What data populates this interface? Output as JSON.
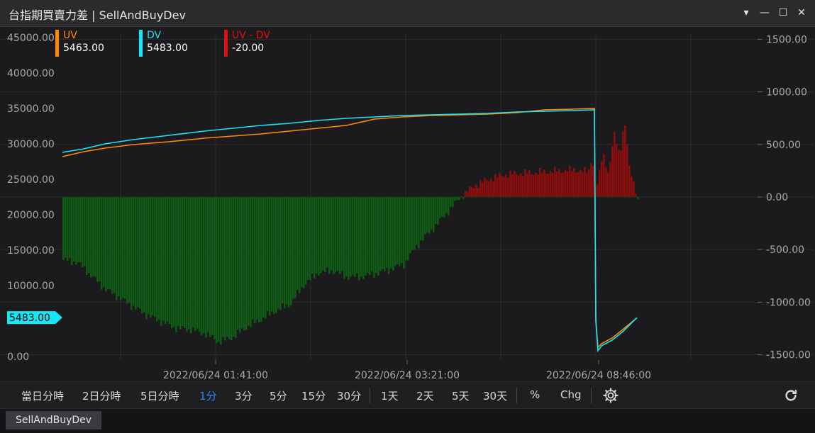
{
  "window": {
    "title": "台指期買賣力差 | SellAndBuyDev",
    "buttons": [
      "▾",
      "—",
      "☐",
      "✕"
    ]
  },
  "legend": [
    {
      "name": "UV",
      "value": "5463.00",
      "color": "#ff8a00"
    },
    {
      "name": "DV",
      "value": "5483.00",
      "color": "#19e6f5"
    },
    {
      "name": "UV - DV",
      "value": "-20.00",
      "color": "#e01010"
    }
  ],
  "price_tag": "5483.00",
  "toolbar": {
    "intervals": [
      "當日分時",
      "2日分時",
      "5日分時",
      "1分",
      "3分",
      "5分",
      "15分",
      "30分",
      "1天",
      "2天",
      "5天",
      "30天",
      "%",
      "Chg"
    ],
    "active": "1分",
    "settings_icon": "gear-icon",
    "refresh_icon": "refresh-icon"
  },
  "tab_label": "SellAndBuyDev",
  "chart_data": {
    "type": "line",
    "left_axis": {
      "ticks": [
        "0.00",
        "10000.00",
        "15000.00",
        "20000.00",
        "25000.00",
        "30000.00",
        "35000.00",
        "40000.00",
        "45000.00"
      ],
      "range": [
        -500,
        45500
      ]
    },
    "right_axis": {
      "ticks": [
        "-1500.00",
        "-1000.00",
        "-500.00",
        "0.00",
        "500.00",
        "1000.00",
        "1500.00"
      ],
      "range": [
        -1550,
        1550
      ]
    },
    "x_ticks": [
      "2022/06/24 01:41:00",
      "2022/06/24 03:21:00",
      "2022/06/24 08:46:00"
    ],
    "series": [
      {
        "name": "UV",
        "color": "#ff8a00",
        "x": [
          0,
          30,
          60,
          100,
          150,
          200,
          240,
          280,
          320,
          360,
          400,
          440,
          480,
          520,
          560,
          600,
          640,
          680,
          720,
          750,
          752,
          755,
          760,
          775,
          790,
          810
        ],
        "y": [
          28200,
          28900,
          29400,
          29900,
          30300,
          30800,
          31100,
          31400,
          31800,
          32200,
          32600,
          33500,
          33800,
          34000,
          34100,
          34200,
          34400,
          34800,
          34900,
          35000,
          5000,
          1300,
          1800,
          2600,
          3800,
          5463
        ]
      },
      {
        "name": "DV",
        "color": "#19e6f5",
        "x": [
          0,
          30,
          60,
          100,
          150,
          200,
          240,
          280,
          320,
          360,
          400,
          440,
          480,
          520,
          560,
          600,
          640,
          680,
          720,
          750,
          752,
          755,
          760,
          775,
          790,
          810
        ],
        "y": [
          28800,
          29300,
          30000,
          30600,
          31200,
          31800,
          32200,
          32600,
          32900,
          33300,
          33600,
          33800,
          34000,
          34100,
          34200,
          34300,
          34500,
          34600,
          34700,
          34800,
          5200,
          800,
          1500,
          2300,
          3500,
          5483
        ]
      },
      {
        "name": "UV - DV",
        "type": "bar",
        "x": [
          0,
          20,
          40,
          60,
          80,
          100,
          120,
          140,
          160,
          180,
          200,
          220,
          240,
          260,
          280,
          300,
          320,
          340,
          360,
          380,
          400,
          420,
          440,
          460,
          480,
          500,
          520,
          540,
          560,
          580,
          600,
          620,
          640,
          660,
          680,
          700,
          720,
          740,
          750,
          760,
          770,
          780,
          790,
          800,
          810
        ],
        "y": [
          -600,
          -620,
          -750,
          -880,
          -960,
          -1050,
          -1130,
          -1190,
          -1250,
          -1260,
          -1300,
          -1380,
          -1330,
          -1230,
          -1160,
          -1080,
          -1020,
          -830,
          -720,
          -700,
          -760,
          -760,
          -730,
          -690,
          -640,
          -450,
          -310,
          -160,
          0,
          110,
          170,
          210,
          225,
          230,
          240,
          250,
          260,
          240,
          230,
          270,
          380,
          500,
          620,
          250,
          -20
        ]
      }
    ]
  }
}
